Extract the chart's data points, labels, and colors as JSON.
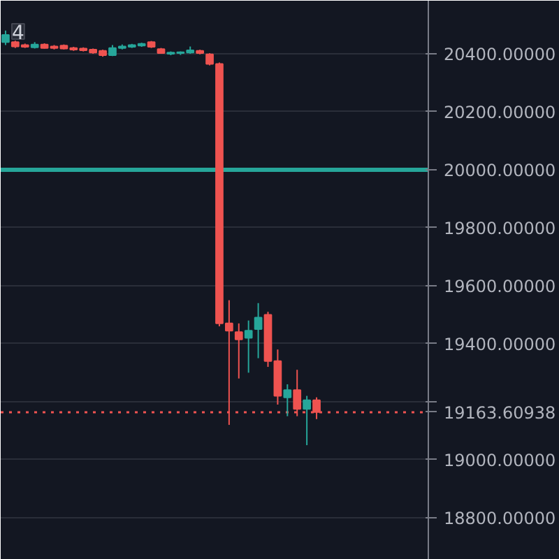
{
  "chart_data": {
    "type": "candlestick",
    "categories": [
      null,
      null,
      null,
      null,
      null,
      null,
      null,
      null,
      null,
      null,
      null,
      null,
      null,
      null,
      null,
      null,
      null,
      null,
      null,
      null,
      null,
      null,
      null,
      null,
      null,
      null,
      null,
      null,
      null,
      null,
      null,
      null,
      null,
      null,
      null,
      null,
      null,
      null,
      null,
      null,
      null,
      null,
      null,
      null
    ],
    "ohlc": [
      [
        20440,
        20480,
        20430,
        20465
      ],
      [
        20440,
        20445,
        20420,
        20425
      ],
      [
        20430,
        20435,
        20420,
        20424
      ],
      [
        20422,
        20440,
        20418,
        20432
      ],
      [
        20432,
        20436,
        20418,
        20420
      ],
      [
        20425,
        20430,
        20415,
        20420
      ],
      [
        20428,
        20432,
        20415,
        20418
      ],
      [
        20420,
        20424,
        20410,
        20414
      ],
      [
        20418,
        20422,
        20408,
        20412
      ],
      [
        20414,
        20418,
        20400,
        20404
      ],
      [
        20410,
        20414,
        20390,
        20395
      ],
      [
        20395,
        20430,
        20392,
        20420
      ],
      [
        20420,
        20432,
        20415,
        20425
      ],
      [
        20424,
        20434,
        20420,
        20430
      ],
      [
        20428,
        20438,
        20424,
        20434
      ],
      [
        20440,
        20444,
        20420,
        20424
      ],
      [
        20416,
        20420,
        20400,
        20402
      ],
      [
        20400,
        20408,
        20395,
        20404
      ],
      [
        20402,
        20408,
        20396,
        20405
      ],
      [
        20404,
        20425,
        20400,
        20412
      ],
      [
        20410,
        20414,
        20398,
        20402
      ],
      [
        20398,
        20402,
        20360,
        20365
      ],
      [
        20365,
        20370,
        19460,
        19470
      ],
      [
        19470,
        19550,
        19120,
        19445
      ],
      [
        19440,
        19470,
        19280,
        19415
      ],
      [
        19420,
        19480,
        19300,
        19445
      ],
      [
        19450,
        19540,
        19350,
        19490
      ],
      [
        19500,
        19510,
        19320,
        19340
      ],
      [
        19340,
        19380,
        19190,
        19220
      ],
      [
        19215,
        19260,
        19150,
        19240
      ],
      [
        19240,
        19310,
        19150,
        19175
      ],
      [
        19175,
        19220,
        19050,
        19205
      ],
      [
        19205,
        19215,
        19140,
        19164
      ],
      null,
      null,
      null,
      null,
      null,
      null,
      null,
      null,
      null,
      null,
      null
    ],
    "colors": [
      "#26a69a",
      "#ef5350",
      "#ef5350",
      "#26a69a",
      "#ef5350",
      "#ef5350",
      "#ef5350",
      "#ef5350",
      "#ef5350",
      "#ef5350",
      "#ef5350",
      "#26a69a",
      "#26a69a",
      "#26a69a",
      "#26a69a",
      "#ef5350",
      "#ef5350",
      "#26a69a",
      "#26a69a",
      "#26a69a",
      "#ef5350",
      "#ef5350",
      "#ef5350",
      "#ef5350",
      "#ef5350",
      "#26a69a",
      "#26a69a",
      "#ef5350",
      "#ef5350",
      "#26a69a",
      "#ef5350",
      "#26a69a",
      "#ef5350",
      null,
      null,
      null,
      null,
      null,
      null,
      null,
      null,
      null,
      null,
      null
    ],
    "ylim": [
      18655,
      20583
    ],
    "yticks": [
      {
        "value": 18800,
        "label": "18800.00000"
      },
      {
        "value": 19000,
        "label": "19000.00000"
      },
      {
        "value": 19200,
        "label": null
      },
      {
        "value": 19400,
        "label": "19400.00000"
      },
      {
        "value": 19600,
        "label": "19600.00000"
      },
      {
        "value": 19800,
        "label": "19800.00000"
      },
      {
        "value": 20000,
        "label": "20000.00000"
      },
      {
        "value": 20200,
        "label": "20200.00000"
      },
      {
        "value": 20400,
        "label": "20400.00000"
      }
    ],
    "ref_lines": [
      {
        "axis": "y",
        "value": 19163.60938,
        "label": "19163.60938",
        "color": "#ef5350",
        "line_style": "dotted"
      },
      {
        "axis": "y",
        "value": 20000,
        "label": null,
        "color": "#26a69a",
        "line_style": "solid"
      }
    ],
    "annotations": [
      "4"
    ],
    "grid": "y"
  }
}
